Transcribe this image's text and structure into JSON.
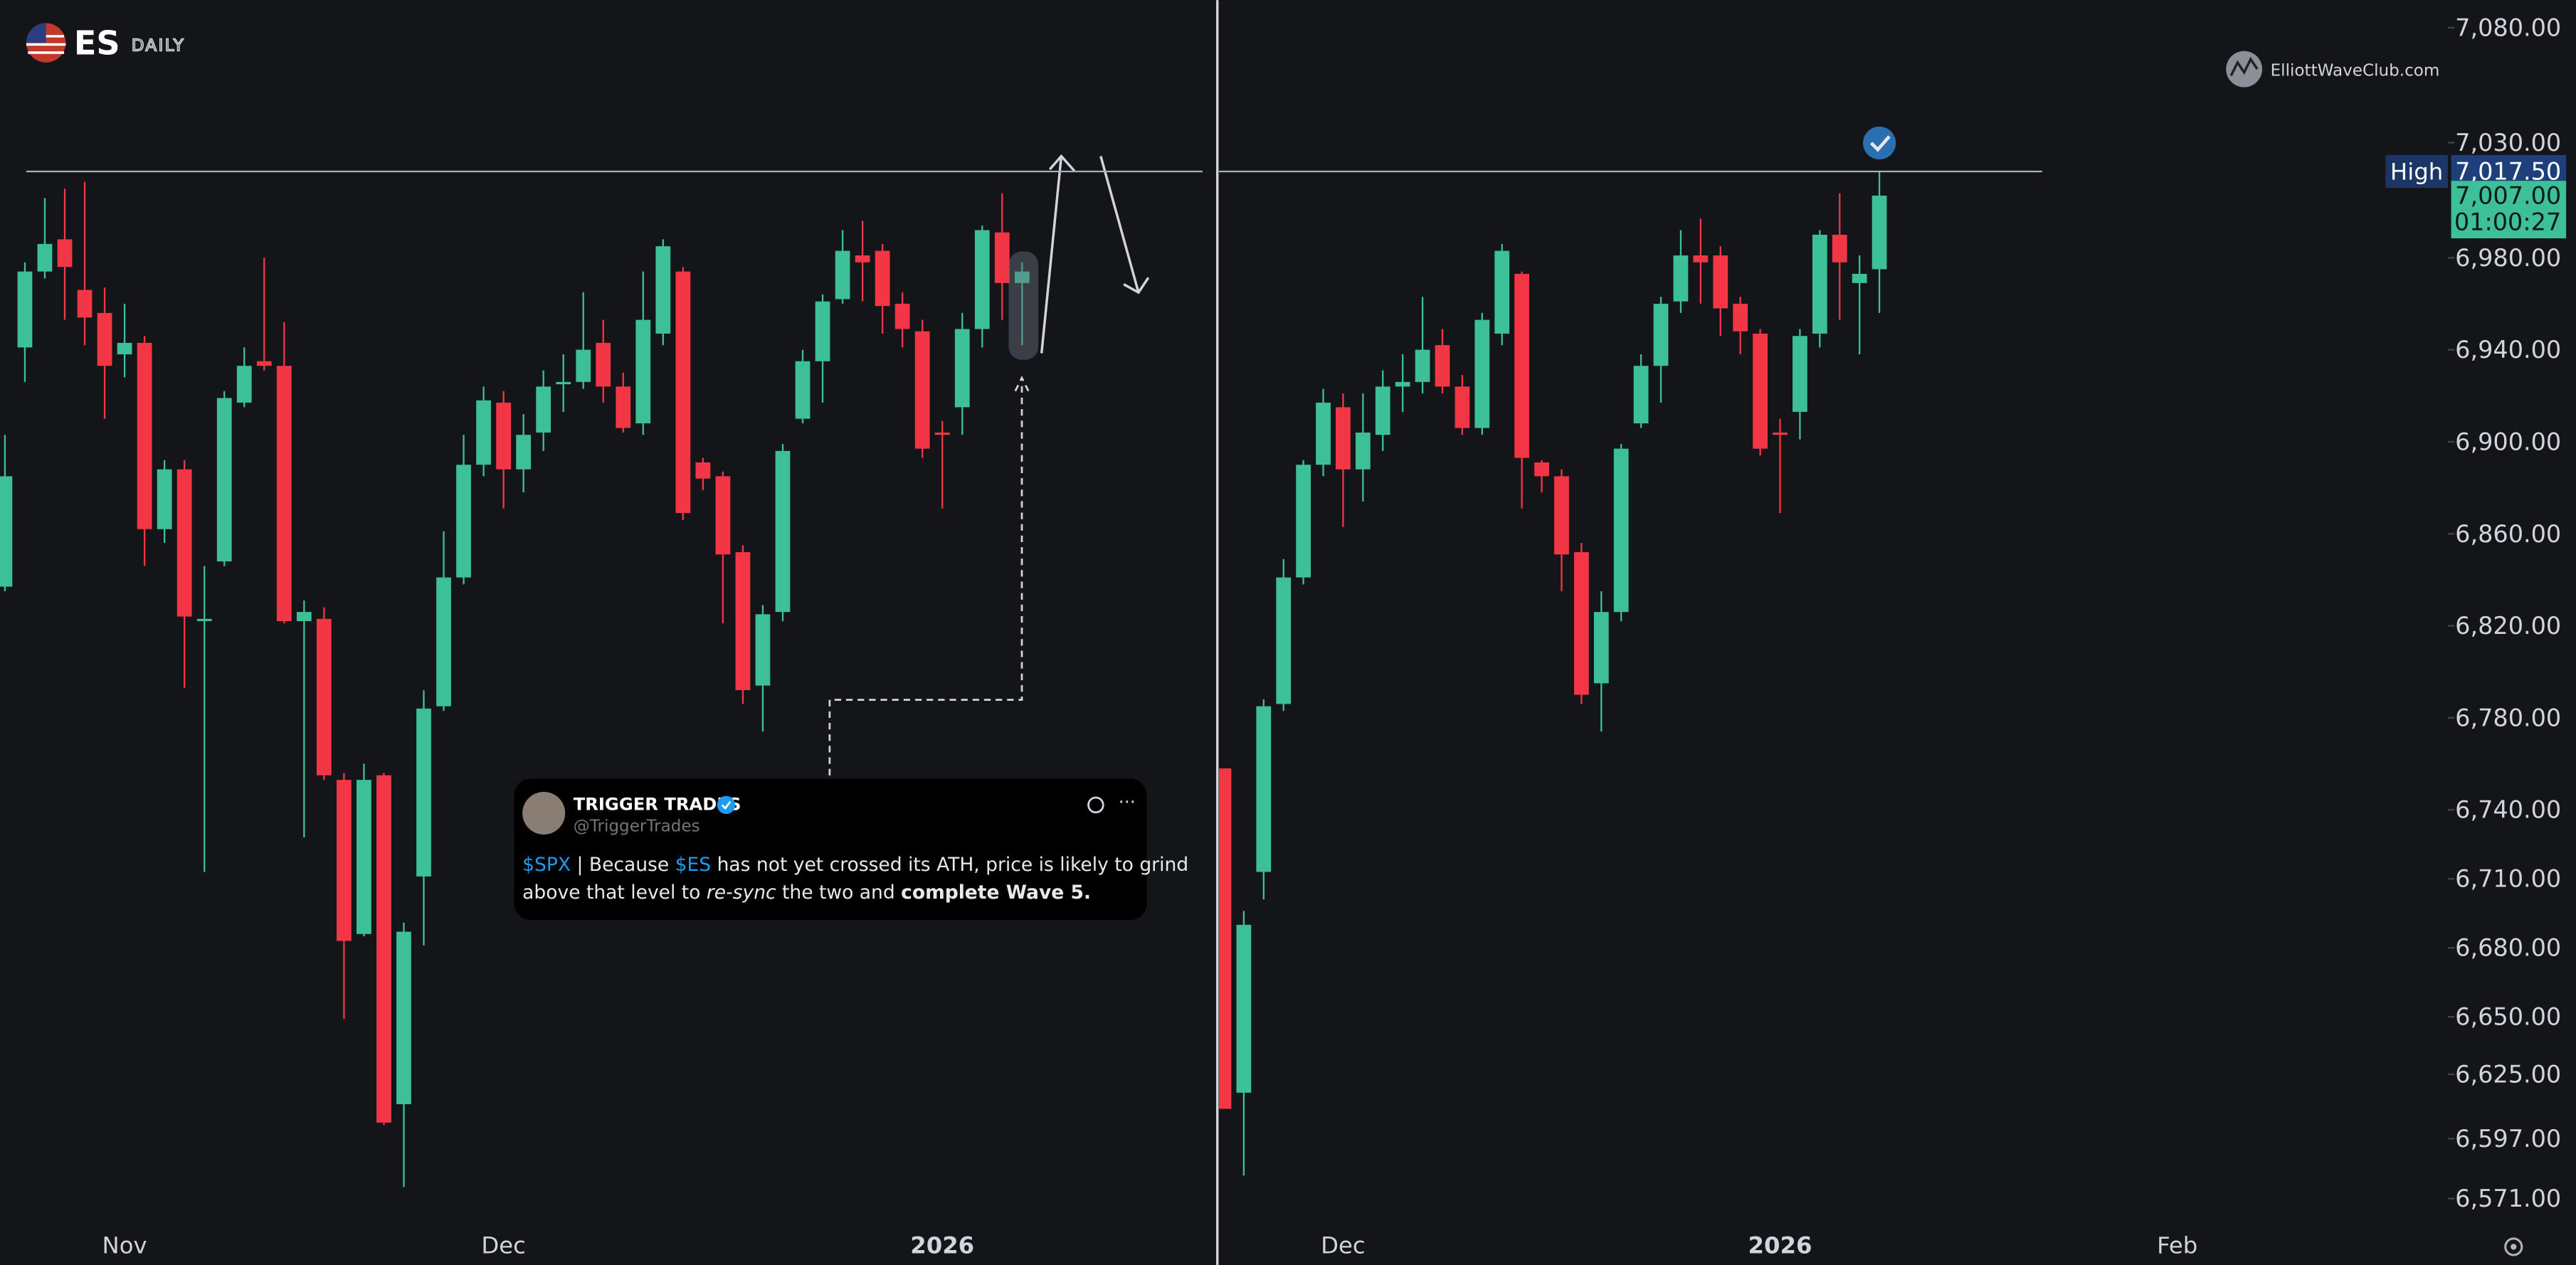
{
  "logo": {
    "symbol": "ES",
    "interval": "DAILY"
  },
  "watermark": "ElliottWaveClub.com",
  "tweet": {
    "name": "TRIGGER TRADES",
    "handle": "@TriggerTrades",
    "lines": [
      [
        {
          "text": "$SPX",
          "style": "link"
        },
        {
          "text": " | Because ",
          "style": "plain"
        },
        {
          "text": "$ES",
          "style": "link"
        },
        {
          "text": " has not yet crossed its ATH, price is likely to grind",
          "style": "plain"
        }
      ],
      [
        {
          "text": "above that level to ",
          "style": "plain"
        },
        {
          "text": "re-sync",
          "style": "italic"
        },
        {
          "text": " the two and ",
          "style": "plain"
        },
        {
          "text": "complete Wave 5.",
          "style": "bold"
        }
      ]
    ]
  },
  "chart_data": [
    {
      "type": "candlestick",
      "up_color": "#3dbf98",
      "down_color": "#f23645",
      "ylim": [
        6560,
        7092
      ],
      "hline": 7017.5,
      "x_labels": [
        {
          "label": "Nov",
          "index": 6,
          "bold": false
        },
        {
          "label": "Dec",
          "index": 25,
          "bold": false
        },
        {
          "label": "2026",
          "index": 47,
          "bold": true
        }
      ],
      "open": [
        6837,
        6941,
        6974,
        6988,
        6966,
        6956,
        6938,
        6943,
        6862,
        6888,
        6822,
        6848,
        6917,
        6935,
        6933,
        6822,
        6823,
        6753,
        6686,
        6755,
        6612,
        6711,
        6785,
        6841,
        6890,
        6917,
        6888,
        6904,
        6925,
        6926,
        6943,
        6924,
        6908,
        6947,
        6974,
        6891,
        6885,
        6852,
        6794,
        6826,
        6910,
        6935,
        6962,
        6981,
        6983,
        6960,
        6948,
        6904,
        6915,
        6949,
        6991,
        6969
      ],
      "high": [
        6903,
        6978,
        7006,
        7010,
        7013,
        6967,
        6960,
        6946,
        6892,
        6892,
        6846,
        6922,
        6941,
        6980,
        6952,
        6831,
        6828,
        6756,
        6760,
        6756,
        6691,
        6792,
        6861,
        6903,
        6924,
        6922,
        6912,
        6931,
        6938,
        6965,
        6953,
        6930,
        6974,
        6988,
        6976,
        6893,
        6887,
        6855,
        6829,
        6899,
        6940,
        6964,
        6992,
        6996,
        6986,
        6965,
        6953,
        6909,
        6956,
        6994,
        7008,
        6978
      ],
      "low": [
        6835,
        6926,
        6971,
        6953,
        6942,
        6910,
        6928,
        6846,
        6856,
        6793,
        6713,
        6846,
        6915,
        6931,
        6821,
        6728,
        6753,
        6649,
        6685,
        6603,
        6576,
        6681,
        6783,
        6838,
        6885,
        6871,
        6878,
        6896,
        6913,
        6923,
        6917,
        6904,
        6903,
        6942,
        6866,
        6879,
        6821,
        6786,
        6774,
        6822,
        6908,
        6917,
        6960,
        6961,
        6947,
        6941,
        6893,
        6871,
        6903,
        6941,
        6953,
        6942
      ],
      "close": [
        6885,
        6974,
        6986,
        6976,
        6954,
        6933,
        6943,
        6862,
        6888,
        6824,
        6823,
        6919,
        6933,
        6933,
        6822,
        6826,
        6755,
        6683,
        6753,
        6604,
        6687,
        6784,
        6841,
        6890,
        6918,
        6888,
        6903,
        6924,
        6926,
        6940,
        6924,
        6906,
        6953,
        6985,
        6869,
        6884,
        6851,
        6792,
        6825,
        6896,
        6935,
        6961,
        6983,
        6978,
        6959,
        6949,
        6897,
        6903,
        6949,
        6992,
        6969,
        6974
      ]
    },
    {
      "type": "candlestick",
      "up_color": "#3dbf98",
      "down_color": "#f23645",
      "ylim": [
        6560,
        7092
      ],
      "hline": 7017.5,
      "x_labels": [
        {
          "label": "Dec",
          "index": 6,
          "bold": false
        },
        {
          "label": "2026",
          "index": 28,
          "bold": true
        },
        {
          "label": "Feb",
          "index": 48,
          "bold": false
        }
      ],
      "yticks": [
        {
          "value": 7080,
          "label": "7,080.00"
        },
        {
          "value": 7030,
          "label": "7,030.00"
        },
        {
          "value": 6980,
          "label": "6,980.00"
        },
        {
          "value": 6940,
          "label": "6,940.00"
        },
        {
          "value": 6900,
          "label": "6,900.00"
        },
        {
          "value": 6860,
          "label": "6,860.00"
        },
        {
          "value": 6820,
          "label": "6,820.00"
        },
        {
          "value": 6780,
          "label": "6,780.00"
        },
        {
          "value": 6740,
          "label": "6,740.00"
        },
        {
          "value": 6710,
          "label": "6,710.00"
        },
        {
          "value": 6680,
          "label": "6,680.00"
        },
        {
          "value": 6650,
          "label": "6,650.00"
        },
        {
          "value": 6625,
          "label": "6,625.00"
        },
        {
          "value": 6597,
          "label": "6,597.00"
        },
        {
          "value": 6571,
          "label": "6,571.00"
        }
      ],
      "high_label": {
        "label": "High",
        "value": 7017.5,
        "value_label": "7,017.50"
      },
      "last_price": {
        "value": 7007,
        "value_label": "7,007.00",
        "countdown": "01:00:27"
      },
      "open": [
        6758,
        6617,
        6713,
        6786,
        6841,
        6890,
        6915,
        6888,
        6903,
        6924,
        6926,
        6942,
        6924,
        6906,
        6947,
        6973,
        6891,
        6885,
        6852,
        6795,
        6826,
        6908,
        6933,
        6961,
        6981,
        6981,
        6960,
        6947,
        6904,
        6913,
        6947,
        6990,
        6969,
        6975
      ],
      "high": [
        6758,
        6696,
        6788,
        6849,
        6892,
        6923,
        6921,
        6921,
        6931,
        6938,
        6963,
        6949,
        6929,
        6956,
        6986,
        6974,
        6892,
        6888,
        6856,
        6835,
        6899,
        6938,
        6963,
        6992,
        6997,
        6985,
        6963,
        6949,
        6910,
        6949,
        6992,
        7008,
        6981,
        7017.5
      ],
      "low": [
        6610,
        6581,
        6701,
        6783,
        6838,
        6885,
        6863,
        6874,
        6896,
        6913,
        6921,
        6921,
        6903,
        6903,
        6942,
        6871,
        6878,
        6835,
        6786,
        6774,
        6822,
        6906,
        6917,
        6956,
        6960,
        6946,
        6938,
        6894,
        6869,
        6901,
        6941,
        6953,
        6938,
        6956
      ],
      "close": [
        6610,
        6690,
        6785,
        6841,
        6890,
        6917,
        6888,
        6904,
        6924,
        6926,
        6940,
        6924,
        6906,
        6953,
        6983,
        6893,
        6885,
        6851,
        6790,
        6826,
        6897,
        6933,
        6960,
        6981,
        6978,
        6958,
        6948,
        6897,
        6903,
        6946,
        6990,
        6978,
        6973,
        7007
      ]
    }
  ]
}
